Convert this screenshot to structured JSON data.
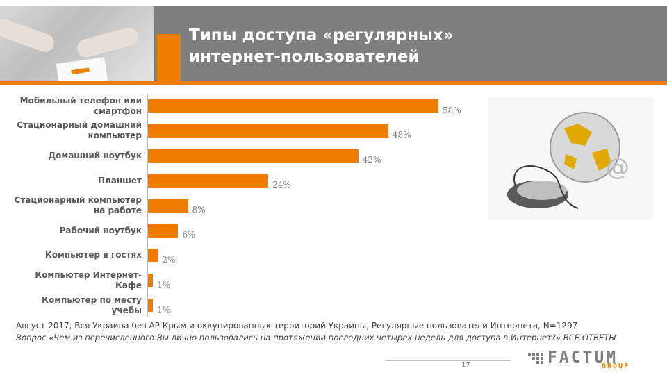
{
  "header": {
    "title_line1": "Типы доступа «регулярных»",
    "title_line2": "интернет-пользователей"
  },
  "chart_data": {
    "type": "bar",
    "orientation": "horizontal",
    "categories": [
      "Мобильный телефон или смартфон",
      "Стационарный домашний компьютер",
      "Домашний ноутбук",
      "Планшет",
      "Стационарный компьютер на работе",
      "Рабочий ноутбук",
      "Компьютер в гостях",
      "Компьютер Интернет-Кафе",
      "Компьютер по месту учебы"
    ],
    "category_lines": [
      [
        "Мобильный телефон или",
        "смартфон"
      ],
      [
        "Стационарный домашний",
        "компьютер"
      ],
      [
        "Домашний ноутбук"
      ],
      [
        "Планшет"
      ],
      [
        "Стационарный компьютер",
        "на работе"
      ],
      [
        "Рабочий ноутбук"
      ],
      [
        "Компьютер в гостях"
      ],
      [
        "Компьютер Интернет-",
        "Кафе"
      ],
      [
        "Компьютер по месту",
        "учебы"
      ]
    ],
    "values": [
      58,
      48,
      42,
      24,
      8,
      6,
      2,
      1,
      1
    ],
    "value_labels": [
      "58%",
      "48%",
      "42%",
      "24%",
      "8%",
      "6%",
      "2%",
      "1%",
      "1%"
    ],
    "bar_color": "#f07d00"
  },
  "footnote": {
    "line1": "Август 2017, Вся Украина без АР Крым и оккупированных территорий Украины, Регулярные пользователи Интернета,  N=1297",
    "line2": "Вопрос «Чем из перечисленного Вы лично пользовались на протяжении последних четырех недель для доступа в Интернет?» ВСЕ ОТВЕТЫ"
  },
  "page_number": "17",
  "logo": {
    "main": "FACTUM",
    "sub": "GROUP"
  },
  "colors": {
    "accent": "#f07d00",
    "header_gray": "#7f7f7f"
  }
}
